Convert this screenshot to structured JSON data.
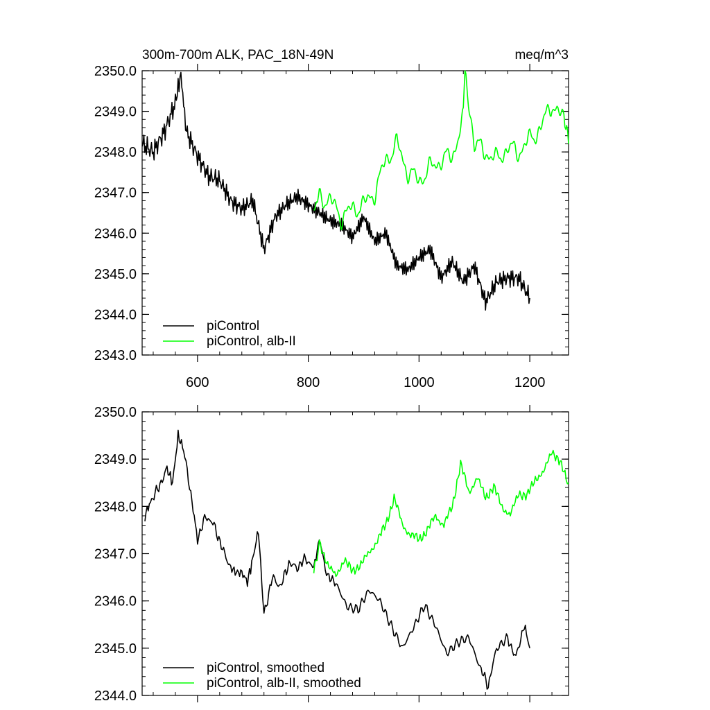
{
  "header": {
    "title": "300m-700m ALK, PAC_18N-49N",
    "units": "meq/m^3"
  },
  "colors": {
    "picontrol": "#000000",
    "alb_ii": "#00ff00",
    "axis": "#000000"
  },
  "chart_data": [
    {
      "type": "line",
      "title": "300m-700m ALK, PAC_18N-49N",
      "units": "meq/m^3",
      "xlim": [
        500,
        1270
      ],
      "ylim": [
        2343.0,
        2350.0
      ],
      "x_ticks": [
        600,
        800,
        1000,
        1200
      ],
      "x_tick_labels": [
        "600",
        "800",
        "1000",
        "1200"
      ],
      "y_ticks": [
        2343.0,
        2344.0,
        2345.0,
        2346.0,
        2347.0,
        2348.0,
        2349.0,
        2350.0
      ],
      "y_tick_labels": [
        "2343.0",
        "2344.0",
        "2345.0",
        "2346.0",
        "2347.0",
        "2348.0",
        "2349.0",
        "2350.0"
      ],
      "legend_position": "bottom-left",
      "series": [
        {
          "name": "piControl",
          "color": "#000000",
          "x": [
            500,
            520,
            540,
            560,
            570,
            580,
            600,
            620,
            640,
            660,
            680,
            700,
            720,
            740,
            760,
            780,
            800,
            820,
            840,
            860,
            880,
            900,
            920,
            940,
            960,
            980,
            1000,
            1020,
            1040,
            1060,
            1080,
            1100,
            1120,
            1140,
            1160,
            1180,
            1200
          ],
          "y": [
            2348.2,
            2348.0,
            2348.5,
            2349.2,
            2349.9,
            2348.5,
            2347.9,
            2347.4,
            2347.3,
            2346.8,
            2346.6,
            2346.8,
            2345.6,
            2346.4,
            2346.7,
            2346.9,
            2346.7,
            2346.5,
            2346.3,
            2346.2,
            2345.9,
            2346.4,
            2345.8,
            2346.0,
            2345.2,
            2345.1,
            2345.4,
            2345.6,
            2344.9,
            2345.3,
            2344.8,
            2345.2,
            2344.3,
            2344.8,
            2344.9,
            2344.9,
            2344.4
          ]
        },
        {
          "name": "piControl, alb-II",
          "color": "#00ff00",
          "x": [
            810,
            820,
            840,
            860,
            880,
            900,
            920,
            940,
            960,
            980,
            1000,
            1020,
            1040,
            1060,
            1080,
            1083,
            1100,
            1120,
            1140,
            1160,
            1180,
            1200,
            1220,
            1240,
            1260,
            1270
          ],
          "y": [
            2346.6,
            2346.9,
            2346.8,
            2346.4,
            2346.6,
            2346.7,
            2347.0,
            2347.8,
            2348.2,
            2347.5,
            2347.3,
            2347.6,
            2347.8,
            2347.9,
            2348.8,
            2350.0,
            2348.2,
            2348.0,
            2347.8,
            2348.1,
            2348.0,
            2348.3,
            2348.6,
            2349.2,
            2348.8,
            2348.2
          ]
        }
      ]
    },
    {
      "type": "line",
      "xlim": [
        500,
        1270
      ],
      "ylim": [
        2344.0,
        2350.0
      ],
      "x_ticks": [
        600,
        800,
        1000,
        1200
      ],
      "y_ticks": [
        2344.0,
        2345.0,
        2346.0,
        2347.0,
        2348.0,
        2349.0,
        2350.0
      ],
      "y_tick_labels": [
        "2344.0",
        "2345.0",
        "2346.0",
        "2347.0",
        "2348.0",
        "2349.0",
        "2350.0"
      ],
      "legend_position": "bottom-left",
      "series": [
        {
          "name": "piControl, smoothed",
          "color": "#000000",
          "x": [
            505,
            515,
            530,
            545,
            555,
            565,
            575,
            590,
            600,
            615,
            630,
            645,
            660,
            670,
            680,
            690,
            700,
            710,
            720,
            735,
            750,
            765,
            780,
            795,
            810,
            820,
            835,
            850,
            870,
            890,
            910,
            930,
            950,
            970,
            990,
            1010,
            1030,
            1050,
            1070,
            1090,
            1110,
            1125,
            1140,
            1160,
            1175,
            1190,
            1200
          ],
          "y": [
            2347.8,
            2348.1,
            2348.4,
            2348.8,
            2348.5,
            2349.5,
            2349.2,
            2348.1,
            2347.3,
            2347.8,
            2347.6,
            2347.1,
            2346.7,
            2346.6,
            2346.6,
            2346.4,
            2346.9,
            2347.5,
            2345.7,
            2346.5,
            2346.3,
            2346.8,
            2346.7,
            2346.9,
            2346.7,
            2347.3,
            2346.5,
            2346.4,
            2345.9,
            2345.8,
            2346.2,
            2346.0,
            2345.5,
            2345.0,
            2345.4,
            2345.9,
            2345.5,
            2344.9,
            2345.1,
            2345.2,
            2344.6,
            2344.2,
            2345.0,
            2345.2,
            2344.8,
            2345.5,
            2345.0
          ]
        },
        {
          "name": "piControl, alb-II, smoothed",
          "color": "#00ff00",
          "x": [
            810,
            820,
            835,
            850,
            865,
            880,
            895,
            910,
            925,
            940,
            955,
            970,
            985,
            1000,
            1015,
            1030,
            1045,
            1060,
            1075,
            1090,
            1105,
            1120,
            1135,
            1150,
            1165,
            1180,
            1195,
            1210,
            1225,
            1240,
            1255,
            1270
          ],
          "y": [
            2346.6,
            2347.2,
            2346.8,
            2346.5,
            2346.9,
            2346.6,
            2346.8,
            2347.0,
            2347.3,
            2347.6,
            2348.2,
            2347.6,
            2347.4,
            2347.3,
            2347.5,
            2347.8,
            2347.6,
            2348.0,
            2348.9,
            2348.3,
            2348.6,
            2348.2,
            2348.4,
            2348.0,
            2347.8,
            2348.3,
            2348.2,
            2348.6,
            2348.7,
            2349.2,
            2348.9,
            2348.5
          ]
        }
      ]
    }
  ]
}
